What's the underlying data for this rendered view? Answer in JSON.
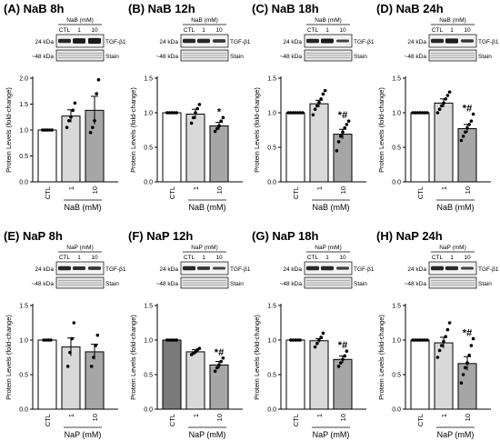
{
  "figure": {
    "panels": [
      {
        "letter": "(A)",
        "title": "NaB 8h",
        "treatment": "NaB (mM)",
        "blot_header": "NaB (mM)",
        "lanes": [
          "CTL",
          "1",
          "10"
        ],
        "kda_top": "24 kDa",
        "kda_bottom": "~48 kDa",
        "band_top": "TGF-β1",
        "band_bottom": "Stain",
        "values": [
          1.0,
          1.27,
          1.38
        ],
        "sem": [
          0.0,
          0.12,
          0.27
        ],
        "points": [
          [
            1,
            1,
            1,
            1,
            1
          ],
          [
            1.05,
            1.18,
            1.25,
            1.38,
            1.52
          ],
          [
            0.95,
            1.05,
            1.18,
            1.7,
            1.97
          ]
        ],
        "annotations": [
          "",
          "",
          ""
        ]
      },
      {
        "letter": "(B)",
        "title": "NaB 12h",
        "treatment": "NaB (mM)",
        "blot_header": "NaB (mM)",
        "lanes": [
          "CTL",
          "1",
          "10"
        ],
        "kda_top": "24 kDa",
        "kda_bottom": "~48 kDa",
        "band_top": "TGF-β1",
        "band_bottom": "Stain",
        "values": [
          1.0,
          0.98,
          0.81
        ],
        "sem": [
          0.0,
          0.07,
          0.05
        ],
        "points": [
          [
            1,
            1,
            1,
            1,
            1
          ],
          [
            0.85,
            0.93,
            1.0,
            1.06,
            1.12
          ],
          [
            0.73,
            0.77,
            0.81,
            0.88,
            0.93
          ]
        ],
        "annotations": [
          "",
          "",
          "*"
        ]
      },
      {
        "letter": "(C)",
        "title": "NaB 18h",
        "treatment": "NaB (mM)",
        "blot_header": "NaB (mM)",
        "lanes": [
          "CTL",
          "1",
          "10"
        ],
        "kda_top": "24 kDa",
        "kda_bottom": "~48 kDa",
        "band_top": "TGF-β1",
        "band_bottom": "Stain",
        "values": [
          1.0,
          1.13,
          0.69
        ],
        "sem": [
          0.0,
          0.05,
          0.07
        ],
        "points": [
          [
            1,
            1,
            1,
            1,
            1,
            1,
            1
          ],
          [
            0.97,
            1.05,
            1.1,
            1.15,
            1.2,
            1.27,
            1.32
          ],
          [
            0.45,
            0.58,
            0.66,
            0.72,
            0.78,
            0.83,
            0.88
          ]
        ],
        "annotations": [
          "",
          "",
          "*#"
        ]
      },
      {
        "letter": "(D)",
        "title": "NaB 24h",
        "treatment": "NaB (mM)",
        "blot_header": "NaB (mM)",
        "lanes": [
          "CTL",
          "1",
          "10"
        ],
        "kda_top": "24 kDa",
        "kda_bottom": "~48 kDa",
        "band_top": "TGF-β1",
        "band_bottom": "Stain",
        "values": [
          1.0,
          1.14,
          0.77
        ],
        "sem": [
          0.0,
          0.06,
          0.06
        ],
        "points": [
          [
            1,
            1,
            1,
            1,
            1,
            1,
            1
          ],
          [
            1.0,
            1.05,
            1.1,
            1.14,
            1.2,
            1.25,
            1.3
          ],
          [
            0.6,
            0.66,
            0.72,
            0.78,
            0.83,
            0.88,
            0.98
          ]
        ],
        "annotations": [
          "",
          "",
          "*#"
        ]
      },
      {
        "letter": "(E)",
        "title": "NaP 8h",
        "treatment": "NaP (mM)",
        "blot_header": "NaP (mM)",
        "lanes": [
          "CTL",
          "1",
          "10"
        ],
        "kda_top": "24 kDa",
        "kda_bottom": "~48 kDa",
        "band_top": "TGF-β1",
        "band_bottom": "Stain",
        "values": [
          1.0,
          0.9,
          0.83
        ],
        "sem": [
          0.0,
          0.13,
          0.11
        ],
        "points": [
          [
            1,
            1,
            1,
            1
          ],
          [
            0.62,
            0.82,
            1.02,
            1.25
          ],
          [
            0.62,
            0.75,
            0.92,
            1.07
          ]
        ],
        "annotations": [
          "",
          "",
          ""
        ]
      },
      {
        "letter": "(F)",
        "title": "NaP 12h",
        "treatment": "NaP (mM)",
        "blot_header": "NaP (mM)",
        "lanes": [
          "CTL",
          "1",
          "10"
        ],
        "kda_top": "24 kDa",
        "kda_bottom": "~48 kDa",
        "band_top": "TGF-β1",
        "band_bottom": "Stain",
        "values": [
          1.0,
          0.83,
          0.64
        ],
        "sem": [
          0.0,
          0.03,
          0.05
        ],
        "points": [
          [
            1,
            1,
            1,
            1,
            1
          ],
          [
            0.79,
            0.81,
            0.83,
            0.86,
            0.88
          ],
          [
            0.55,
            0.6,
            0.64,
            0.69,
            0.74
          ]
        ],
        "annotations": [
          "",
          "",
          "*#"
        ]
      },
      {
        "letter": "(G)",
        "title": "NaP 18h",
        "treatment": "NaP (mM)",
        "blot_header": "NaP (mM)",
        "lanes": [
          "CTL",
          "1",
          "10"
        ],
        "kda_top": "24 kDa",
        "kda_bottom": "~48 kDa",
        "band_top": "TGF-β1",
        "band_bottom": "Stain",
        "values": [
          1.0,
          0.99,
          0.72
        ],
        "sem": [
          0.0,
          0.03,
          0.05
        ],
        "points": [
          [
            1,
            1,
            1,
            1,
            1
          ],
          [
            0.9,
            0.95,
            1.0,
            1.04,
            1.1
          ],
          [
            0.62,
            0.67,
            0.72,
            0.77,
            0.84
          ]
        ],
        "annotations": [
          "",
          "",
          "*#"
        ]
      },
      {
        "letter": "(H)",
        "title": "NaP 24h",
        "treatment": "NaP (mM)",
        "blot_header": "NaP (mM)",
        "lanes": [
          "CTL",
          "1",
          "10"
        ],
        "kda_top": "24 kDa",
        "kda_bottom": "~48 kDa",
        "band_top": "TGF-β1",
        "band_bottom": "Stain",
        "values": [
          1.0,
          0.96,
          0.66
        ],
        "sem": [
          0.0,
          0.08,
          0.1
        ],
        "points": [
          [
            1,
            1,
            1,
            1,
            1,
            1,
            1
          ],
          [
            0.75,
            0.85,
            0.92,
            0.98,
            1.05,
            1.15,
            1.25
          ],
          [
            0.38,
            0.5,
            0.6,
            0.67,
            0.78,
            0.92,
            1.02
          ]
        ],
        "annotations": [
          "",
          "",
          "*#"
        ]
      }
    ]
  },
  "chart_data": [
    {
      "type": "bar",
      "title": "NaB 8h",
      "categories": [
        "CTL",
        "1",
        "10"
      ],
      "values": [
        1.0,
        1.27,
        1.38
      ],
      "xlabel": "NaB (mM)",
      "ylabel": "Protein Levels (fold-change)",
      "ylim": [
        0,
        2
      ],
      "yticks": [
        0.0,
        0.5,
        1.0,
        1.5,
        2.0
      ]
    },
    {
      "type": "bar",
      "title": "NaB 12h",
      "categories": [
        "CTL",
        "1",
        "10"
      ],
      "values": [
        1.0,
        0.98,
        0.81
      ],
      "xlabel": "NaB (mM)",
      "ylabel": "Protein Levels (fold-change)",
      "ylim": [
        0,
        1.5
      ],
      "yticks": [
        0.0,
        0.5,
        1.0,
        1.5
      ]
    },
    {
      "type": "bar",
      "title": "NaB 18h",
      "categories": [
        "CTL",
        "1",
        "10"
      ],
      "values": [
        1.0,
        1.13,
        0.69
      ],
      "xlabel": "NaB (mM)",
      "ylabel": "Protein Levels (fold-change)",
      "ylim": [
        0,
        1.5
      ],
      "yticks": [
        0.0,
        0.5,
        1.0,
        1.5
      ]
    },
    {
      "type": "bar",
      "title": "NaB 24h",
      "categories": [
        "CTL",
        "1",
        "10"
      ],
      "values": [
        1.0,
        1.14,
        0.77
      ],
      "xlabel": "NaB (mM)",
      "ylabel": "Protein Levels (fold-change)",
      "ylim": [
        0,
        1.5
      ],
      "yticks": [
        0.0,
        0.5,
        1.0,
        1.5
      ]
    },
    {
      "type": "bar",
      "title": "NaP 8h",
      "categories": [
        "CTL",
        "1",
        "10"
      ],
      "values": [
        1.0,
        0.9,
        0.83
      ],
      "xlabel": "NaP (mM)",
      "ylabel": "Protein Levels (fold-change)",
      "ylim": [
        0,
        1.5
      ],
      "yticks": [
        0.0,
        0.5,
        1.0,
        1.5
      ]
    },
    {
      "type": "bar",
      "title": "NaP 12h",
      "categories": [
        "CTL",
        "1",
        "10"
      ],
      "values": [
        1.0,
        0.83,
        0.64
      ],
      "xlabel": "NaP (mM)",
      "ylabel": "Protein Levels (fold-change)",
      "ylim": [
        0,
        1.5
      ],
      "yticks": [
        0.0,
        0.5,
        1.0,
        1.5
      ]
    },
    {
      "type": "bar",
      "title": "NaP 18h",
      "categories": [
        "CTL",
        "1",
        "10"
      ],
      "values": [
        1.0,
        0.99,
        0.72
      ],
      "xlabel": "NaP (mM)",
      "ylabel": "Protein Levels (fold-change)",
      "ylim": [
        0,
        1.5
      ],
      "yticks": [
        0.0,
        0.5,
        1.0,
        1.5
      ]
    },
    {
      "type": "bar",
      "title": "NaP 24h",
      "categories": [
        "CTL",
        "1",
        "10"
      ],
      "values": [
        1.0,
        0.96,
        0.66
      ],
      "xlabel": "NaP (mM)",
      "ylabel": "Protein Levels (fold-change)",
      "ylim": [
        0,
        1.5
      ],
      "yticks": [
        0.0,
        0.5,
        1.0,
        1.5
      ]
    }
  ],
  "axes": {
    "ylabel": "Protein Levels (fold-change)",
    "yticks_a": [
      "0.0",
      "0.5",
      "1.0",
      "1.5",
      "2.0"
    ],
    "yticks_std": [
      "0.0",
      "0.5",
      "1.0",
      "1.5"
    ]
  },
  "colors": {
    "ctl": "#ffffff",
    "dose1": "#d9d9d9",
    "dose10": "#a6a6a6",
    "ctl_F": "#7a7a7a",
    "blot_bg": "#f2f2f2",
    "band_dark": "#1a1a1a"
  }
}
